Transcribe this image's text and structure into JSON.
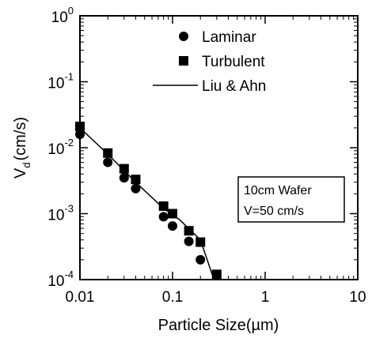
{
  "chart_data": {
    "type": "scatter",
    "x_scale": "log",
    "y_scale": "log",
    "xlim": [
      0.01,
      10
    ],
    "ylim": [
      0.0001,
      1
    ],
    "x_ticks": [
      "0.01",
      "0.1",
      "1",
      "10"
    ],
    "y_ticks": [
      {
        "base": "10",
        "exp": "0"
      },
      {
        "base": "10",
        "exp": "-1"
      },
      {
        "base": "10",
        "exp": "-2"
      },
      {
        "base": "10",
        "exp": "-3"
      },
      {
        "base": "10",
        "exp": "-4"
      }
    ],
    "xlabel": "Particle Size(µm)",
    "ylabel": {
      "main": "V",
      "sub": "d",
      "rest": "(cm/s)"
    },
    "grid": false,
    "legend_position": "top-right",
    "series": [
      {
        "name": "Laminar",
        "marker": "circle",
        "points": [
          [
            0.01,
            0.016
          ],
          [
            0.02,
            0.006
          ],
          [
            0.03,
            0.0035
          ],
          [
            0.04,
            0.0024
          ],
          [
            0.08,
            0.0009
          ],
          [
            0.1,
            0.00065
          ],
          [
            0.15,
            0.00038
          ],
          [
            0.2,
            0.0002
          ]
        ]
      },
      {
        "name": "Turbulent",
        "marker": "square",
        "points": [
          [
            0.01,
            0.021
          ],
          [
            0.02,
            0.0083
          ],
          [
            0.03,
            0.0048
          ],
          [
            0.04,
            0.0033
          ],
          [
            0.08,
            0.0013
          ],
          [
            0.1,
            0.001
          ],
          [
            0.15,
            0.00055
          ],
          [
            0.2,
            0.00037
          ],
          [
            0.3,
            0.00012
          ]
        ]
      },
      {
        "name": "Liu & Ahn",
        "marker": "line",
        "points": [
          [
            0.01,
            0.02
          ],
          [
            0.02,
            0.008
          ],
          [
            0.04,
            0.003
          ],
          [
            0.08,
            0.0012
          ],
          [
            0.12,
            0.0008
          ],
          [
            0.2,
            0.0004
          ],
          [
            0.28,
            0.0001
          ]
        ]
      }
    ],
    "annotation": {
      "line1": "10cm  Wafer",
      "line2": "V=50  cm/s"
    }
  }
}
